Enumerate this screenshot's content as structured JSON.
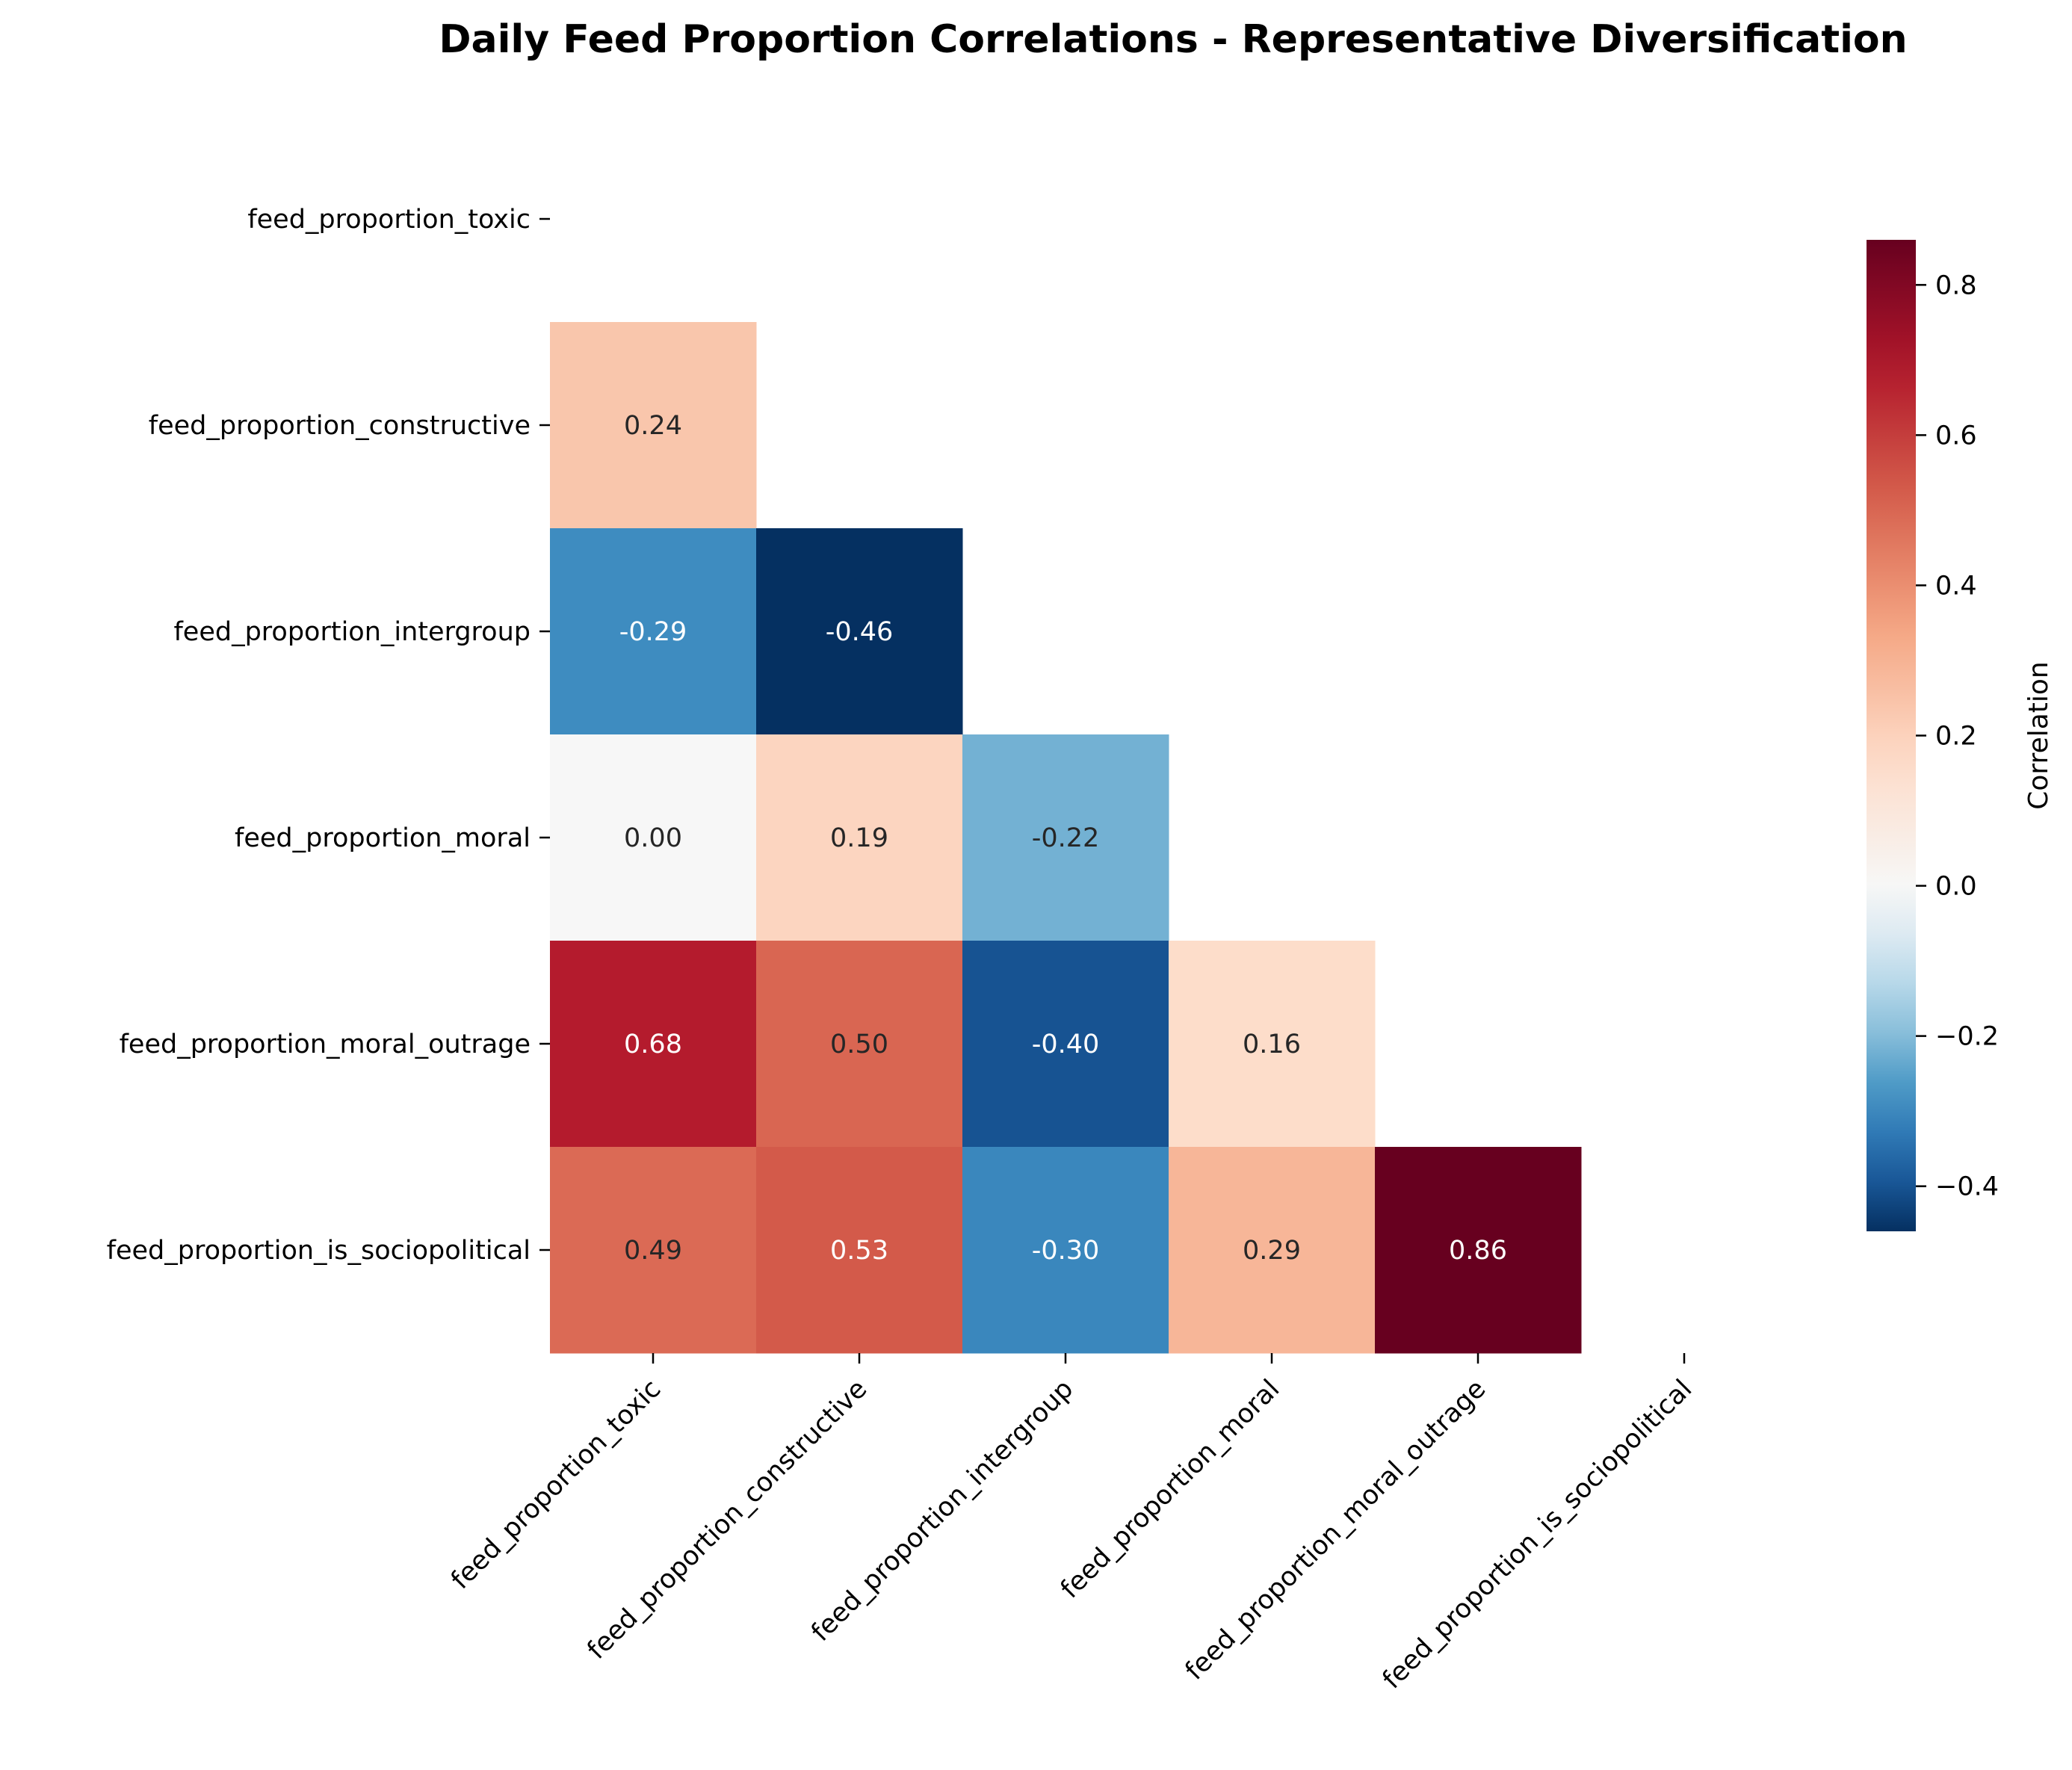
{
  "chart_data": {
    "type": "heatmap",
    "title": "Daily Feed Proportion Correlations - Representative Diversification",
    "variables": [
      "feed_proportion_toxic",
      "feed_proportion_constructive",
      "feed_proportion_intergroup",
      "feed_proportion_moral",
      "feed_proportion_moral_outrage",
      "feed_proportion_is_sociopolitical"
    ],
    "mask": "upper-triangle-including-diagonal",
    "matrix": [
      [
        null,
        null,
        null,
        null,
        null,
        null
      ],
      [
        0.24,
        null,
        null,
        null,
        null,
        null
      ],
      [
        -0.29,
        -0.46,
        null,
        null,
        null,
        null
      ],
      [
        0.0,
        0.19,
        -0.22,
        null,
        null,
        null
      ],
      [
        0.68,
        0.5,
        -0.4,
        0.16,
        null,
        null
      ],
      [
        0.49,
        0.53,
        -0.3,
        0.29,
        0.86,
        null
      ]
    ],
    "value_labels": [
      [
        "",
        "",
        "",
        "",
        "",
        ""
      ],
      [
        "0.24",
        "",
        "",
        "",
        "",
        ""
      ],
      [
        "-0.29",
        "-0.46",
        "",
        "",
        "",
        ""
      ],
      [
        "0.00",
        "0.19",
        "-0.22",
        "",
        "",
        ""
      ],
      [
        "0.68",
        "0.50",
        "-0.40",
        "0.16",
        "",
        ""
      ],
      [
        "0.49",
        "0.53",
        "-0.30",
        "0.29",
        "0.86",
        ""
      ]
    ],
    "colormap": "RdBu_r",
    "color_range": [
      -0.46,
      0.86
    ],
    "colorbar": {
      "label": "Correlation",
      "ticks": [
        0.8,
        0.6,
        0.4,
        0.2,
        0.0,
        -0.2,
        -0.4
      ],
      "tick_labels": [
        "0.8",
        "0.6",
        "0.4",
        "0.2",
        "0.0",
        "−0.2",
        "−0.4"
      ]
    },
    "grid": false
  }
}
